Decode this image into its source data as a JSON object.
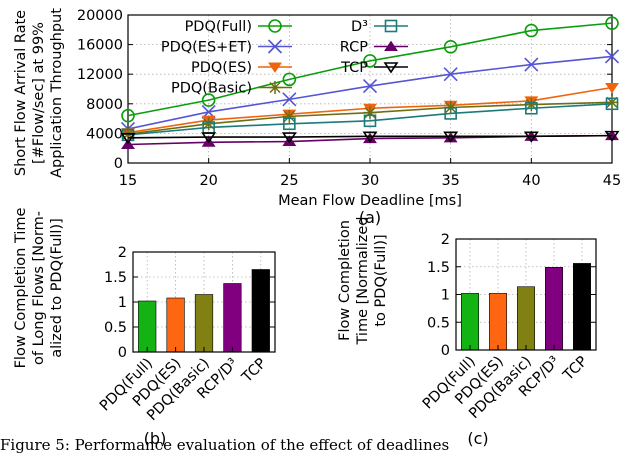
{
  "caption": "Figure 5: Performance evaluation of the effect of deadlines",
  "chart_data": [
    {
      "id": "a",
      "type": "line",
      "panel_label": "(a)",
      "xlabel": "Mean Flow Deadline [ms]",
      "ylabel_lines": [
        "Short Flow Arrival Rate",
        "[#Flow/sec] at 99%",
        "Application Throughput"
      ],
      "x": [
        15,
        20,
        25,
        30,
        35,
        40,
        45
      ],
      "xlim": [
        15,
        45
      ],
      "ylim": [
        0,
        20000
      ],
      "yticks": [
        0,
        4000,
        8000,
        12000,
        16000,
        20000
      ],
      "xticks": [
        15,
        20,
        25,
        30,
        35,
        40,
        45
      ],
      "grid": true,
      "legend_position": "top-left, two columns",
      "series": [
        {
          "name": "PDQ(Full)",
          "color": "#0a9e0a",
          "marker": "circle",
          "values": [
            6400,
            8500,
            11300,
            13800,
            15700,
            17900,
            18900
          ]
        },
        {
          "name": "PDQ(ES+ET)",
          "color": "#5555d6",
          "marker": "x",
          "values": [
            4600,
            6900,
            8600,
            10400,
            12000,
            13300,
            14400
          ]
        },
        {
          "name": "PDQ(ES)",
          "color": "#f0640f",
          "marker": "triangle-down-filled",
          "values": [
            4100,
            5800,
            6600,
            7400,
            7800,
            8400,
            10200
          ]
        },
        {
          "name": "PDQ(Basic)",
          "color": "#6e6e10",
          "marker": "star",
          "values": [
            3900,
            5300,
            6300,
            6800,
            7500,
            7900,
            8200
          ]
        },
        {
          "name": "D³",
          "color": "#1c7a7a",
          "marker": "square",
          "values": [
            3800,
            4800,
            5300,
            5700,
            6700,
            7400,
            8000
          ]
        },
        {
          "name": "RCP",
          "color": "#660066",
          "marker": "triangle-up-filled",
          "values": [
            2500,
            2800,
            2900,
            3300,
            3400,
            3600,
            3700
          ]
        },
        {
          "name": "TCP",
          "color": "#000000",
          "marker": "triangle-down-open",
          "values": [
            3400,
            3500,
            3500,
            3600,
            3600,
            3600,
            3700
          ]
        }
      ]
    },
    {
      "id": "b",
      "type": "bar",
      "panel_label": "(b)",
      "ylabel_lines": [
        "Flow Completion Time",
        "of Long Flows [Norm-",
        "alized to PDQ(Full)]"
      ],
      "categories": [
        "PDQ(Full)",
        "PDQ(ES)",
        "PDQ(Basic)",
        "RCP/D³",
        "TCP"
      ],
      "values": [
        1.02,
        1.08,
        1.15,
        1.37,
        1.65
      ],
      "colors": [
        "#13b313",
        "#ff6611",
        "#808013",
        "#800080",
        "#000000"
      ],
      "ylim": [
        0,
        2
      ],
      "yticks": [
        0,
        0.5,
        1,
        1.5,
        2
      ],
      "grid": true
    },
    {
      "id": "c",
      "type": "bar",
      "panel_label": "(c)",
      "ylabel_lines": [
        "Flow Completion",
        "Time [Normalized",
        "to PDQ(Full)]"
      ],
      "categories": [
        "PDQ(Full)",
        "PDQ(ES)",
        "PDQ(Basic)",
        "RCP/D³",
        "TCP"
      ],
      "values": [
        1.02,
        1.02,
        1.14,
        1.49,
        1.56
      ],
      "colors": [
        "#13b313",
        "#ff6611",
        "#808013",
        "#800080",
        "#000000"
      ],
      "ylim": [
        0,
        2
      ],
      "yticks": [
        0,
        0.5,
        1,
        1.5,
        2
      ],
      "grid": true
    }
  ]
}
